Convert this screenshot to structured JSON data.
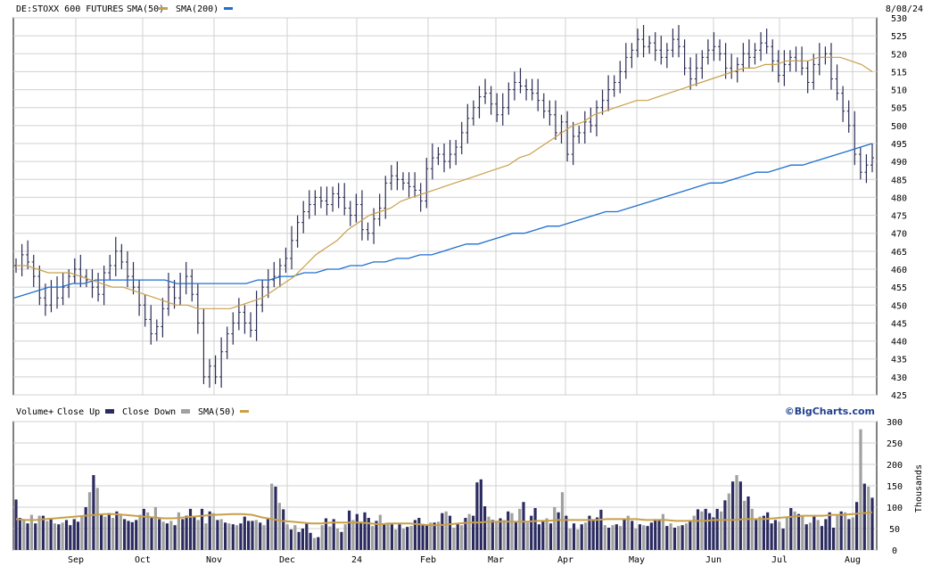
{
  "header": {
    "symbol": "DE:STOXX 600 FUTURES",
    "sma50_label": "SMA(50)",
    "sma200_label": "SMA(200)",
    "date": "8/08/24"
  },
  "volume_header": {
    "volume_label": "Volume+",
    "close_up_label": "Close Up",
    "close_down_label": "Close Down",
    "sma50_label": "SMA(50)",
    "brand": "©BigCharts.com",
    "units": "Thousands"
  },
  "colors": {
    "price_bar": "#2b2b55",
    "sma50": "#c9a04a",
    "sma200": "#1f6fcf",
    "vol_up": "#2b2b60",
    "vol_down": "#a0a0a0",
    "vol_sma": "#c9a04a",
    "grid": "#d0d0d0"
  },
  "chart_data": [
    {
      "type": "line",
      "title": "DE:STOXX 600 FUTURES",
      "y_ticks": [
        425,
        430,
        435,
        440,
        445,
        450,
        455,
        460,
        465,
        470,
        475,
        480,
        485,
        490,
        495,
        500,
        505,
        510,
        515,
        520,
        525,
        530
      ],
      "ylim": [
        425,
        530
      ],
      "x_tick_labels": [
        "Sep",
        "Oct",
        "Nov",
        "Dec",
        "24",
        "Feb",
        "Mar",
        "Apr",
        "May",
        "Jun",
        "Jul",
        "Aug"
      ],
      "series": [
        {
          "name": "SMA(50)",
          "values": [
            461,
            461,
            460,
            459,
            459,
            459,
            458,
            457,
            456,
            455,
            455,
            454,
            453,
            452,
            451,
            450,
            450,
            449,
            449,
            449,
            449,
            450,
            451,
            452,
            454,
            456,
            458,
            461,
            464,
            466,
            468,
            471,
            473,
            475,
            476,
            477,
            479,
            480,
            481,
            482,
            483,
            484,
            485,
            486,
            487,
            488,
            489,
            491,
            492,
            494,
            496,
            498,
            500,
            501,
            503,
            504,
            505,
            506,
            507,
            507,
            508,
            509,
            510,
            511,
            512,
            513,
            514,
            515,
            516,
            516,
            517,
            517,
            518,
            518,
            518,
            519,
            519,
            519,
            518,
            517,
            515
          ]
        },
        {
          "name": "SMA(200)",
          "values": [
            452,
            453,
            454,
            455,
            455,
            456,
            456,
            457,
            457,
            457,
            457,
            457,
            457,
            457,
            456,
            456,
            456,
            456,
            456,
            456,
            456,
            457,
            457,
            458,
            458,
            459,
            459,
            460,
            460,
            461,
            461,
            462,
            462,
            463,
            463,
            464,
            464,
            465,
            466,
            467,
            467,
            468,
            469,
            470,
            470,
            471,
            472,
            472,
            473,
            474,
            475,
            476,
            476,
            477,
            478,
            479,
            480,
            481,
            482,
            483,
            484,
            484,
            485,
            486,
            487,
            487,
            488,
            489,
            489,
            490,
            491,
            492,
            493,
            494,
            495
          ]
        },
        {
          "name": "Price",
          "values": [
            461,
            464,
            462,
            458,
            452,
            450,
            455,
            452,
            455,
            458,
            460,
            458,
            457,
            455,
            453,
            459,
            461,
            465,
            462,
            458,
            455,
            450,
            446,
            442,
            444,
            449,
            455,
            452,
            456,
            458,
            453,
            445,
            430,
            433,
            430,
            437,
            442,
            445,
            448,
            445,
            443,
            450,
            455,
            457,
            458,
            461,
            463,
            468,
            473,
            476,
            478,
            480,
            479,
            478,
            481,
            480,
            477,
            475,
            478,
            471,
            470,
            474,
            477,
            484,
            486,
            485,
            484,
            483,
            482,
            479,
            488,
            491,
            492,
            490,
            492,
            494,
            498,
            502,
            505,
            508,
            509,
            506,
            503,
            505,
            510,
            512,
            511,
            510,
            509,
            507,
            504,
            503,
            498,
            501,
            492,
            497,
            498,
            501,
            500,
            505,
            507,
            510,
            512,
            515,
            519,
            521,
            524,
            522,
            523,
            521,
            519,
            521,
            524,
            522,
            516,
            513,
            516,
            519,
            521,
            522,
            520,
            516,
            515,
            517,
            520,
            519,
            521,
            523,
            522,
            518,
            514,
            517,
            519,
            518,
            516,
            512,
            517,
            519,
            520,
            513,
            509,
            504,
            500,
            492,
            487,
            489,
            491
          ]
        }
      ]
    },
    {
      "type": "bar",
      "title": "Volume",
      "ylabel": "Thousands",
      "y_ticks": [
        0,
        50,
        100,
        150,
        200,
        250,
        300
      ],
      "ylim": [
        0,
        300
      ],
      "x_tick_labels": [
        "Sep",
        "Oct",
        "Nov",
        "Dec",
        "24",
        "Feb",
        "Mar",
        "Apr",
        "May",
        "Jun",
        "Jul",
        "Aug"
      ],
      "series": [
        {
          "name": "Volume",
          "values": [
            118,
            75,
            70,
            62,
            82,
            62,
            80,
            80,
            68,
            72,
            62,
            60,
            64,
            70,
            58,
            72,
            66,
            80,
            100,
            135,
            175,
            145,
            82,
            78,
            86,
            75,
            90,
            84,
            72,
            68,
            65,
            70,
            82,
            96,
            88,
            75,
            100,
            72,
            66,
            62,
            68,
            58,
            88,
            72,
            80,
            96,
            78,
            70,
            96,
            62,
            90,
            86,
            70,
            72,
            64,
            62,
            60,
            58,
            62,
            78,
            68,
            68,
            70,
            64,
            58,
            75,
            155,
            148,
            110,
            95,
            60,
            48,
            58,
            42,
            50,
            62,
            40,
            28,
            30,
            58,
            74,
            55,
            72,
            50,
            42,
            60,
            92,
            70,
            84,
            66,
            88,
            75,
            56,
            68,
            82,
            62,
            64,
            60,
            48,
            60,
            50,
            54,
            56,
            70,
            75,
            58,
            60,
            64,
            64,
            66,
            86,
            90,
            80,
            52,
            62,
            58,
            75,
            84,
            80,
            158,
            165,
            102,
            78,
            70,
            66,
            74,
            70,
            90,
            86,
            66,
            96,
            112,
            64,
            80,
            98,
            60,
            68,
            74,
            62,
            100,
            88,
            135,
            80,
            50,
            62,
            48,
            60,
            64,
            80,
            72,
            76,
            94,
            58,
            52,
            58,
            60,
            56,
            72,
            80,
            68,
            50,
            60,
            58,
            56,
            64,
            72,
            72,
            84,
            56,
            62,
            52,
            56,
            58,
            62,
            70,
            80,
            95,
            90,
            96,
            86,
            76,
            96,
            90,
            116,
            132,
            160,
            175,
            160,
            115,
            125,
            96,
            70,
            78,
            80,
            88,
            62,
            70,
            66,
            50,
            76,
            98,
            90,
            84,
            80,
            60,
            64,
            78,
            70,
            56,
            72,
            88,
            52,
            80,
            90,
            88,
            72,
            76,
            112,
            282,
            155,
            148,
            122
          ]
        },
        {
          "name": "SMA(50)",
          "values": [
            72,
            70,
            70,
            72,
            74,
            76,
            78,
            80,
            82,
            84,
            84,
            82,
            80,
            78,
            76,
            74,
            74,
            76,
            78,
            80,
            82,
            83,
            84,
            84,
            82,
            76,
            72,
            68,
            66,
            64,
            62,
            62,
            64,
            64,
            64,
            64,
            62,
            60,
            62,
            62,
            62,
            60,
            58,
            58,
            60,
            62,
            64,
            64,
            66,
            66,
            66,
            66,
            66,
            68,
            68,
            70,
            70,
            70,
            70,
            70,
            72,
            72,
            72,
            72,
            70,
            70,
            70,
            68,
            68,
            68,
            68,
            70,
            70,
            70,
            72,
            72,
            72,
            74,
            76,
            78,
            80,
            80,
            80,
            82,
            82,
            84,
            86,
            88
          ]
        }
      ]
    }
  ],
  "y_axis_main": [
    "425",
    "430",
    "435",
    "440",
    "445",
    "450",
    "455",
    "460",
    "465",
    "470",
    "475",
    "480",
    "485",
    "490",
    "495",
    "500",
    "505",
    "510",
    "515",
    "520",
    "525",
    "530"
  ],
  "y_axis_vol": [
    "0",
    "50",
    "100",
    "150",
    "200",
    "250",
    "300"
  ],
  "x_axis": [
    "Sep",
    "Oct",
    "Nov",
    "Dec",
    "24",
    "Feb",
    "Mar",
    "Apr",
    "May",
    "Jun",
    "Jul",
    "Aug"
  ]
}
